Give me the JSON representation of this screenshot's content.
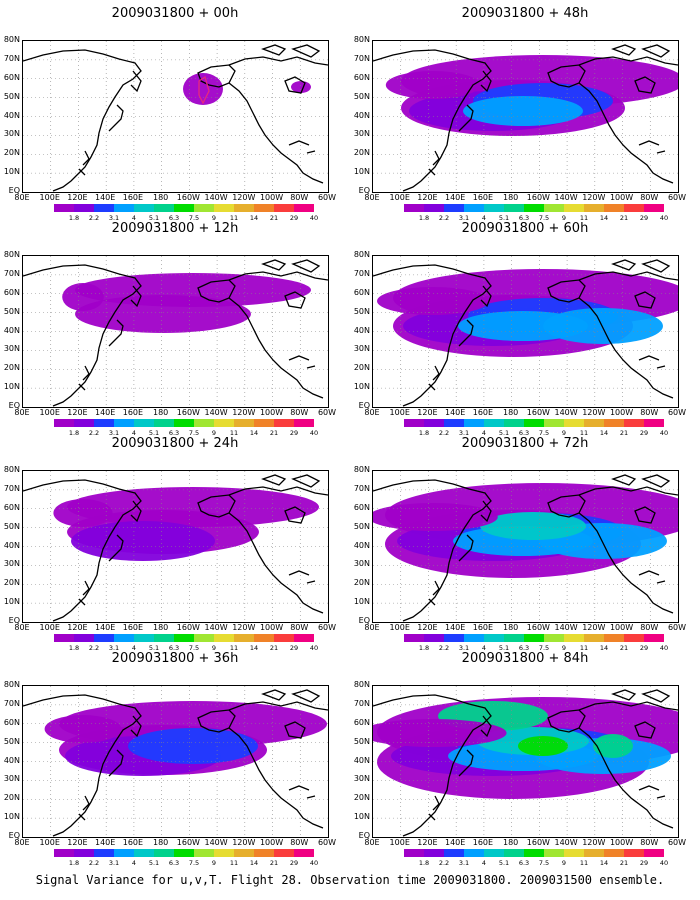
{
  "panels": [
    {
      "id": "p00",
      "title": "2009031800 + 00h",
      "level": 0
    },
    {
      "id": "p48",
      "title": "2009031800 + 48h",
      "level": 4
    },
    {
      "id": "p12",
      "title": "2009031800 + 12h",
      "level": 1
    },
    {
      "id": "p60",
      "title": "2009031800 + 60h",
      "level": 5
    },
    {
      "id": "p24",
      "title": "2009031800 + 24h",
      "level": 2
    },
    {
      "id": "p72",
      "title": "2009031800 + 72h",
      "level": 6
    },
    {
      "id": "p36",
      "title": "2009031800 + 36h",
      "level": 3
    },
    {
      "id": "p84",
      "title": "2009031800 + 84h",
      "level": 7
    }
  ],
  "lat_labels": [
    "80N",
    "70N",
    "60N",
    "50N",
    "40N",
    "30N",
    "20N",
    "10N",
    "EQ"
  ],
  "lon_labels": [
    "80E",
    "100E",
    "120E",
    "140E",
    "160E",
    "180",
    "160W",
    "140W",
    "120W",
    "100W",
    "80W",
    "60W"
  ],
  "colorbar": {
    "labels": [
      "1.8",
      "2.2",
      "3.1",
      "4",
      "5.1",
      "6.3",
      "7.5",
      "9",
      "11",
      "14",
      "21",
      "29",
      "40"
    ],
    "colors": [
      "#a000c8",
      "#8200dc",
      "#1e3cff",
      "#00a0ff",
      "#00c8c8",
      "#00d28c",
      "#00dc00",
      "#a0e632",
      "#e6dc32",
      "#e6af2d",
      "#f08228",
      "#fa3c3c",
      "#f00082"
    ]
  },
  "caption": "Signal Variance for u,v,T. Flight 28. Observation time 2009031800. 2009031500 ensemble."
}
